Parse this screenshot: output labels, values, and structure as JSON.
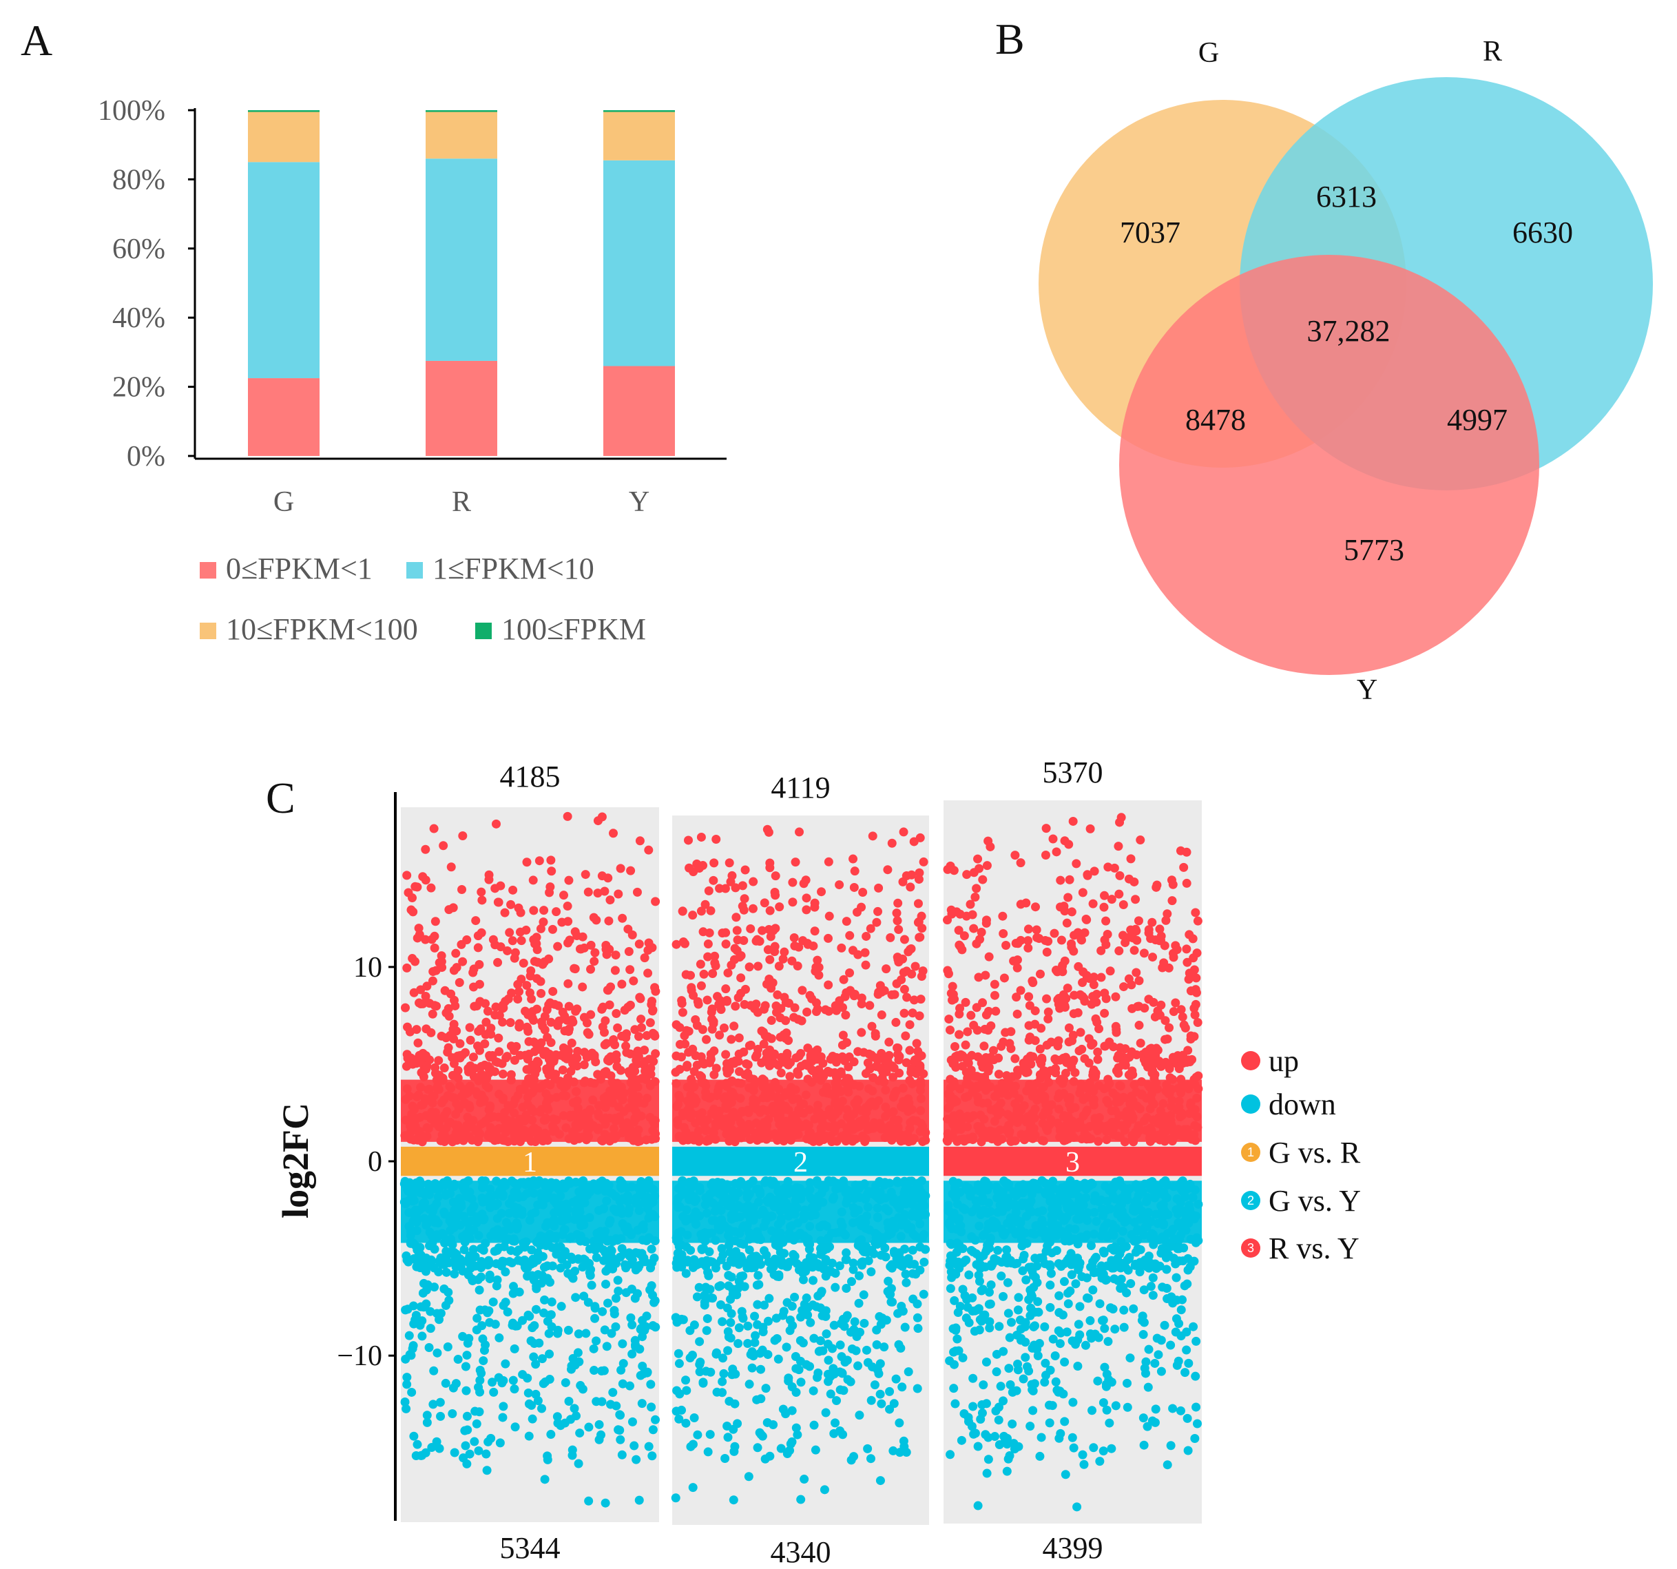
{
  "colors": {
    "pink": "#FF7B7B",
    "cyan": "#6DD6E8",
    "orange": "#F9C479",
    "green": "#10AE6A",
    "up_red": "#FF4048",
    "down_cyan": "#00C2E0",
    "gvr_orange": "#F6A833",
    "panel_bg": "#EBEBEB"
  },
  "chart_data": [
    {
      "panel": "A",
      "type": "bar",
      "stacked": true,
      "categories": [
        "G",
        "R",
        "Y"
      ],
      "series": [
        {
          "name": "0≤FPKM<1",
          "color_key": "pink",
          "values": [
            22.5,
            27.5,
            26.0
          ]
        },
        {
          "name": "1≤FPKM<10",
          "color_key": "cyan",
          "values": [
            62.5,
            58.5,
            59.5
          ]
        },
        {
          "name": "10≤FPKM<100",
          "color_key": "orange",
          "values": [
            14.5,
            13.5,
            14.0
          ]
        },
        {
          "name": "100≤FPKM",
          "color_key": "green",
          "values": [
            0.5,
            0.5,
            0.5
          ]
        }
      ],
      "yticks": [
        "0%",
        "20%",
        "40%",
        "60%",
        "80%",
        "100%"
      ],
      "ylim": [
        0,
        100
      ],
      "legend_position": "bottom"
    },
    {
      "panel": "B",
      "type": "venn",
      "sets": [
        {
          "name": "G",
          "color_key": "orange"
        },
        {
          "name": "R",
          "color_key": "cyan"
        },
        {
          "name": "Y",
          "color_key": "pink"
        }
      ],
      "regions": [
        {
          "sets": [
            "G"
          ],
          "value": "7037"
        },
        {
          "sets": [
            "R"
          ],
          "value": "6630"
        },
        {
          "sets": [
            "Y"
          ],
          "value": "5773"
        },
        {
          "sets": [
            "G",
            "R"
          ],
          "value": "6313"
        },
        {
          "sets": [
            "G",
            "Y"
          ],
          "value": "8478"
        },
        {
          "sets": [
            "R",
            "Y"
          ],
          "value": "4997"
        },
        {
          "sets": [
            "G",
            "R",
            "Y"
          ],
          "value": "37,282"
        }
      ]
    },
    {
      "panel": "C",
      "type": "scatter",
      "ylabel": "log2FC",
      "yticks": [
        -10,
        0,
        10
      ],
      "ylim": [
        -18.5,
        19
      ],
      "groups": [
        {
          "id": "1",
          "name": "G vs. R",
          "color_key": "gvr_orange",
          "up": "4185",
          "down": "5344"
        },
        {
          "id": "2",
          "name": "G vs. Y",
          "color_key": "down_cyan",
          "up": "4119",
          "down": "4340"
        },
        {
          "id": "3",
          "name": "R vs. Y",
          "color_key": "up_red",
          "up": "5370",
          "down": "4399"
        }
      ],
      "legend": [
        {
          "label": "up",
          "color_key": "up_red"
        },
        {
          "label": "down",
          "color_key": "down_cyan"
        },
        {
          "label": "G vs. R",
          "color_key": "gvr_orange",
          "badge": "1"
        },
        {
          "label": "G vs. Y",
          "color_key": "down_cyan",
          "badge": "2"
        },
        {
          "label": "R vs. Y",
          "color_key": "up_red",
          "badge": "3"
        }
      ],
      "legend_position": "right"
    }
  ],
  "panel_labels": {
    "a": "A",
    "b": "B",
    "c": "C"
  }
}
